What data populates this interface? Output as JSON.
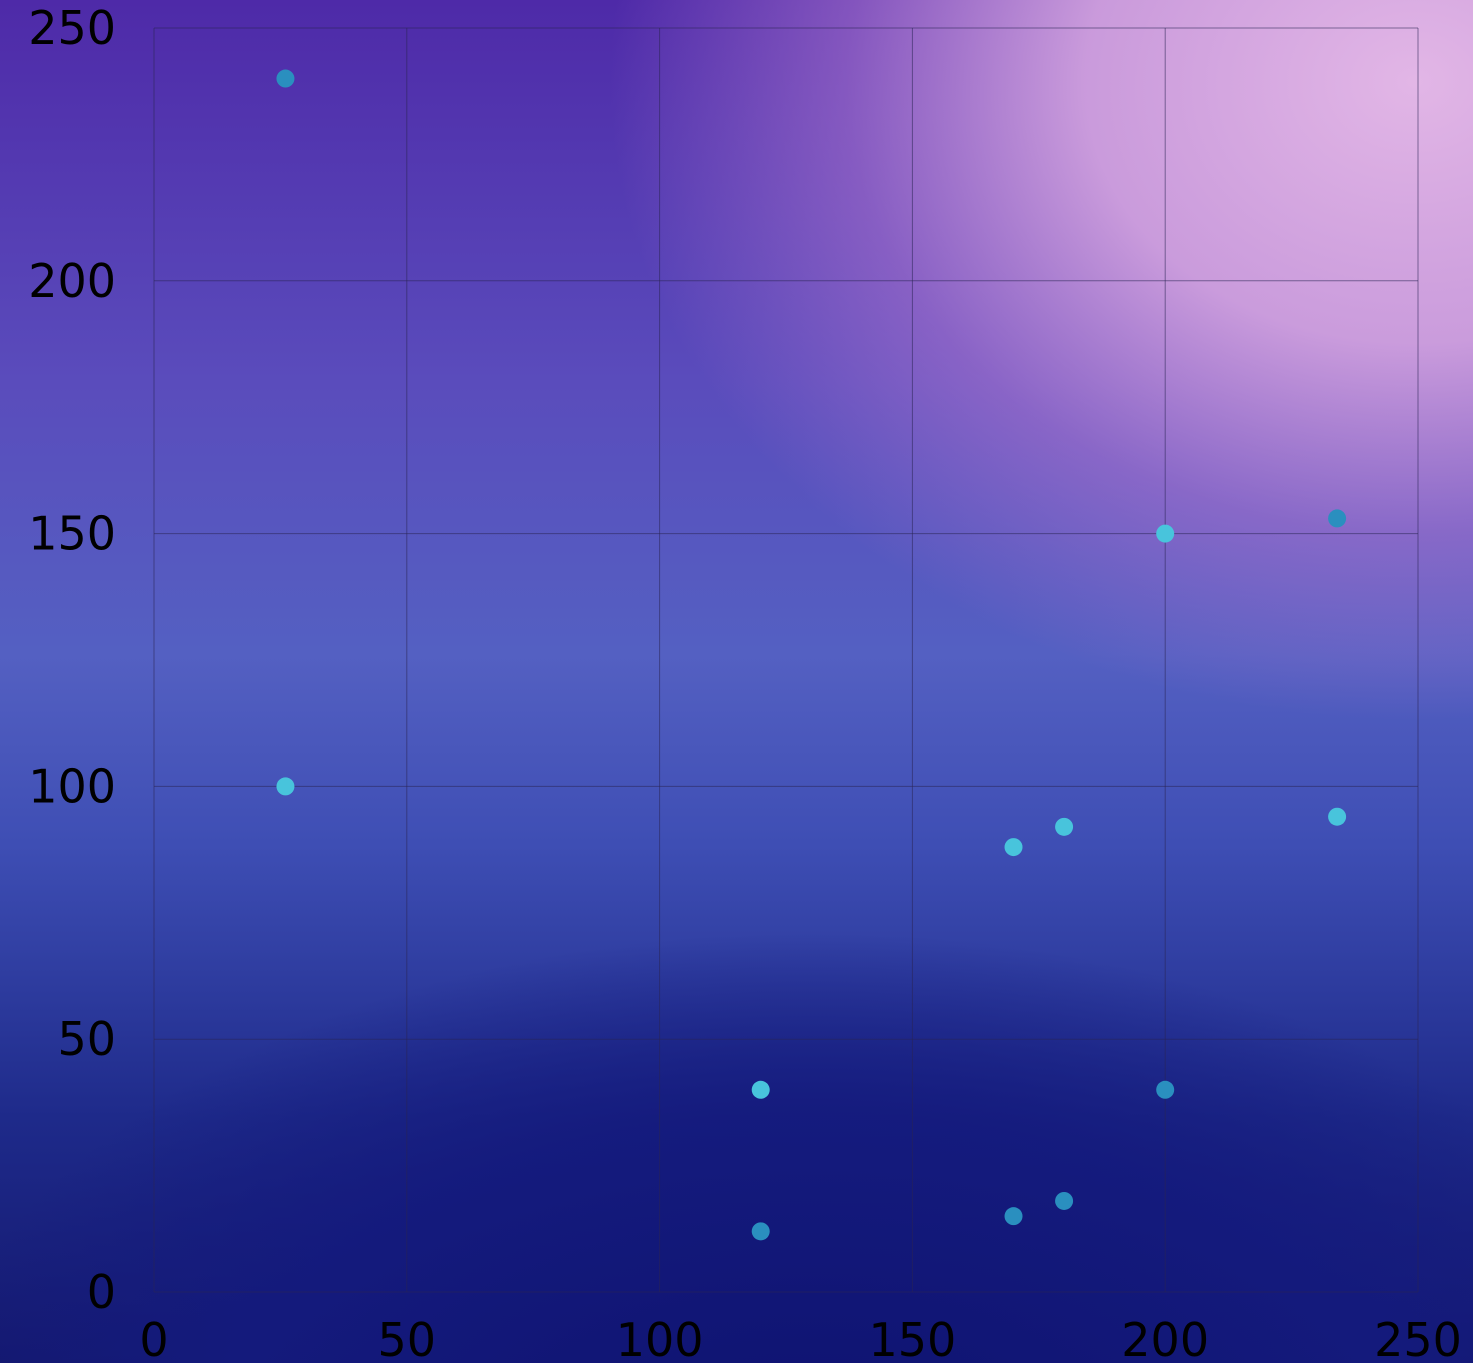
{
  "chart_data": {
    "type": "scatter",
    "title": "",
    "xlabel": "",
    "ylabel": "",
    "xlim": [
      0,
      250
    ],
    "ylim": [
      0,
      250
    ],
    "grid": true,
    "x_ticks": [
      "0",
      "50",
      "100",
      "150",
      "200",
      "250"
    ],
    "y_ticks": [
      "0",
      "50",
      "100",
      "150",
      "200",
      "250"
    ],
    "series": [
      {
        "color": "#2a8fbf",
        "points": [
          {
            "x": 26,
            "y": 240
          },
          {
            "x": 234,
            "y": 153
          },
          {
            "x": 200,
            "y": 40
          },
          {
            "x": 180,
            "y": 18
          },
          {
            "x": 170,
            "y": 15
          },
          {
            "x": 120,
            "y": 12
          }
        ]
      },
      {
        "color": "#48c4dc",
        "points": [
          {
            "x": 26,
            "y": 100
          },
          {
            "x": 200,
            "y": 150
          },
          {
            "x": 234,
            "y": 94
          },
          {
            "x": 180,
            "y": 92
          },
          {
            "x": 170,
            "y": 88
          },
          {
            "x": 120,
            "y": 40
          }
        ]
      }
    ]
  }
}
